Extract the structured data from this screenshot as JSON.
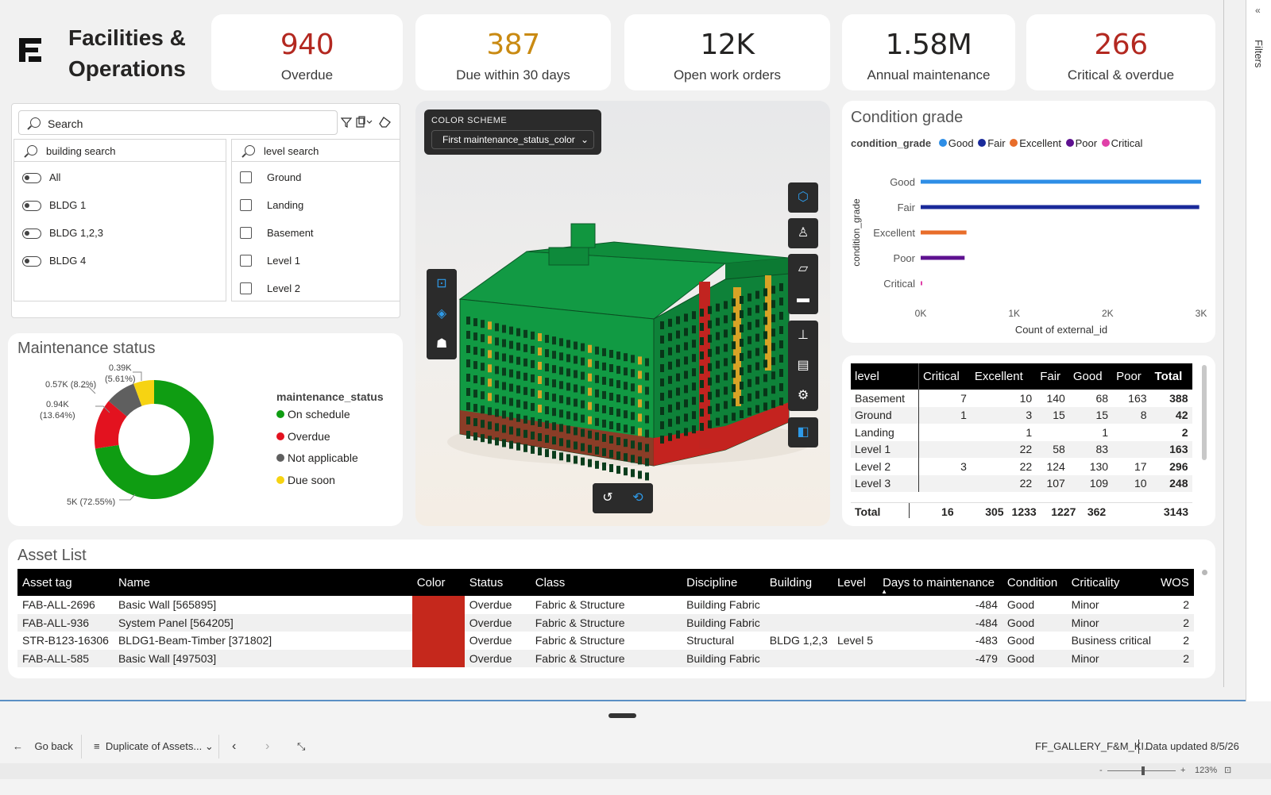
{
  "brand": {
    "title_line1": "Facilities &",
    "title_line2": "Operations"
  },
  "kpis": [
    {
      "value": "940",
      "label": "Overdue",
      "color": "#b32820"
    },
    {
      "value": "387",
      "label": "Due within 30 days",
      "color": "#c98a12"
    },
    {
      "value": "12K",
      "label": "Open work orders",
      "color": "#252423"
    },
    {
      "value": "1.58M",
      "label": "Annual maintenance",
      "color": "#252423"
    },
    {
      "value": "266",
      "label": "Critical & overdue",
      "color": "#b32820"
    }
  ],
  "slicer": {
    "search_placeholder": "Search",
    "building_search": "building search",
    "level_search": "level search",
    "buildings": [
      "All",
      "BLDG 1",
      "BLDG 1,2,3",
      "BLDG 4"
    ],
    "levels": [
      "Ground",
      "Landing",
      "Basement",
      "Level 1",
      "Level 2"
    ]
  },
  "maintenance": {
    "title": "Maintenance status",
    "legend_title": "maintenance_status",
    "labels": {
      "yellow": "0.39K",
      "yellow_pct": "(5.61%)",
      "gray": "0.57K (8.2%)",
      "red": "0.94K",
      "red_pct": "(13.64%)",
      "green": "5K (72.55%)"
    },
    "legend": [
      {
        "name": "On schedule",
        "color": "#0f9d12"
      },
      {
        "name": "Overdue",
        "color": "#e3121f"
      },
      {
        "name": "Not applicable",
        "color": "#5f5f5f"
      },
      {
        "name": "Due soon",
        "color": "#f6d312"
      }
    ]
  },
  "chart_data": {
    "type": "pie",
    "title": "Maintenance status",
    "legend_title": "maintenance_status",
    "series": [
      {
        "name": "On schedule",
        "value": 5000,
        "pct": 72.55
      },
      {
        "name": "Overdue",
        "value": 940,
        "pct": 13.64
      },
      {
        "name": "Not applicable",
        "value": 570,
        "pct": 8.2
      },
      {
        "name": "Due soon",
        "value": 390,
        "pct": 5.61
      }
    ]
  },
  "viewer": {
    "scheme_label": "COLOR SCHEME",
    "scheme_value": "First maintenance_status_color"
  },
  "condition": {
    "title": "Condition grade",
    "legend_title": "condition_grade",
    "legend": [
      {
        "name": "Good",
        "color": "#2e8ee6"
      },
      {
        "name": "Fair",
        "color": "#1a2a9a"
      },
      {
        "name": "Excellent",
        "color": "#e86d2a"
      },
      {
        "name": "Poor",
        "color": "#5e1190"
      },
      {
        "name": "Critical",
        "color": "#e040a8"
      }
    ],
    "categories": [
      "Good",
      "Fair",
      "Excellent",
      "Poor",
      "Critical"
    ],
    "values": [
      3030,
      2980,
      490,
      470,
      16
    ],
    "xticks": [
      "0K",
      "1K",
      "2K",
      "3K"
    ],
    "xlim": [
      0,
      3000
    ],
    "xlabel": "Count of external_id",
    "ylabel": "condition_grade"
  },
  "level_table": {
    "headers": [
      "level",
      "Critical",
      "Excellent",
      "Fair",
      "Good",
      "Poor",
      "Total"
    ],
    "rows": [
      [
        "Basement",
        "7",
        "10",
        "140",
        "68",
        "163",
        "388"
      ],
      [
        "Ground",
        "1",
        "3",
        "15",
        "15",
        "8",
        "42"
      ],
      [
        "Landing",
        "",
        "1",
        "",
        "1",
        "",
        "2"
      ],
      [
        "Level 1",
        "",
        "22",
        "58",
        "83",
        "",
        "163"
      ],
      [
        "Level 2",
        "3",
        "22",
        "124",
        "130",
        "17",
        "296"
      ],
      [
        "Level 3",
        "",
        "22",
        "107",
        "109",
        "10",
        "248"
      ]
    ],
    "total": [
      "Total",
      "16",
      "305",
      "1233",
      "1227",
      "362",
      "3143"
    ]
  },
  "assets": {
    "title": "Asset List",
    "headers": [
      "Asset tag",
      "Name",
      "Color",
      "Status",
      "Class",
      "Discipline",
      "Building",
      "Level",
      "Days to maintenance",
      "Condition",
      "Criticality",
      "WOS"
    ],
    "rows": [
      [
        "FAB-ALL-2696",
        "Basic Wall [565895]",
        "",
        "Overdue",
        "Fabric & Structure",
        "Building Fabric",
        "",
        "",
        "-484",
        "Good",
        "Minor",
        "2"
      ],
      [
        "FAB-ALL-936",
        "System Panel [564205]",
        "",
        "Overdue",
        "Fabric & Structure",
        "Building Fabric",
        "",
        "",
        "-484",
        "Good",
        "Minor",
        "2"
      ],
      [
        "STR-B123-16306",
        "BLDG1-Beam-Timber [371802]",
        "",
        "Overdue",
        "Fabric & Structure",
        "Structural",
        "BLDG 1,2,3",
        "Level 5",
        "-483",
        "Good",
        "Business critical",
        "2"
      ],
      [
        "FAB-ALL-585",
        "Basic Wall [497503]",
        "",
        "Overdue",
        "Fabric & Structure",
        "Building Fabric",
        "",
        "",
        "-479",
        "Good",
        "Minor",
        "2"
      ]
    ]
  },
  "footer": {
    "go_back": "Go back",
    "page_name": "Duplicate of Assets...",
    "file_name": "FF_GALLERY_F&M_KI...",
    "updated": "Data updated 8/5/26",
    "zoom": "123%"
  },
  "filters_label": "Filters"
}
